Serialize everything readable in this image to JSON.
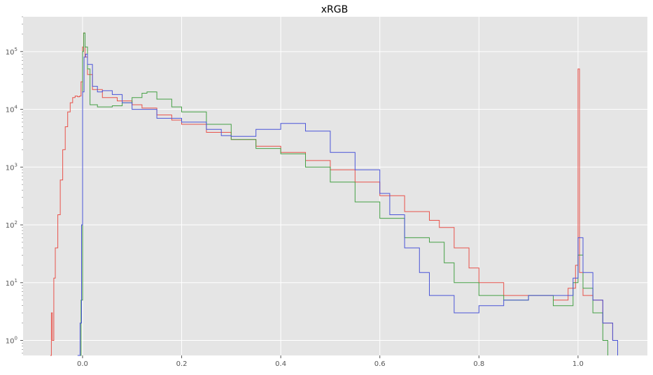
{
  "chart_data": {
    "type": "line",
    "title": "xRGB",
    "xlabel": "",
    "ylabel": "",
    "xlim": [
      -0.12,
      1.14
    ],
    "ylim": [
      0.55,
      400000
    ],
    "yscale": "log",
    "grid": true,
    "background": "#e5e5e5",
    "x_ticks": [
      {
        "value": 0.0,
        "label": "0.0"
      },
      {
        "value": 0.2,
        "label": "0.2"
      },
      {
        "value": 0.4,
        "label": "0.4"
      },
      {
        "value": 0.6,
        "label": "0.6"
      },
      {
        "value": 0.8,
        "label": "0.8"
      },
      {
        "value": 1.0,
        "label": "1.0"
      }
    ],
    "y_ticks": [
      {
        "value": 1,
        "base": "10",
        "exp": "0"
      },
      {
        "value": 10,
        "base": "10",
        "exp": "1"
      },
      {
        "value": 100,
        "base": "10",
        "exp": "2"
      },
      {
        "value": 1000,
        "base": "10",
        "exp": "3"
      },
      {
        "value": 10000,
        "base": "10",
        "exp": "4"
      },
      {
        "value": 100000,
        "base": "10",
        "exp": "5"
      }
    ],
    "series": [
      {
        "color": "#e8524a",
        "points": [
          [
            -0.065,
            0.5
          ],
          [
            -0.063,
            3
          ],
          [
            -0.061,
            1
          ],
          [
            -0.058,
            12
          ],
          [
            -0.055,
            40
          ],
          [
            -0.05,
            150
          ],
          [
            -0.045,
            600
          ],
          [
            -0.04,
            2000
          ],
          [
            -0.035,
            5000
          ],
          [
            -0.03,
            9000
          ],
          [
            -0.025,
            13000
          ],
          [
            -0.02,
            16000
          ],
          [
            -0.015,
            17000
          ],
          [
            -0.01,
            16500
          ],
          [
            -0.006,
            17000
          ],
          [
            -0.003,
            30000
          ],
          [
            0.0,
            120000
          ],
          [
            0.002,
            210000
          ],
          [
            0.005,
            80000
          ],
          [
            0.01,
            40000
          ],
          [
            0.02,
            22000
          ],
          [
            0.04,
            16000
          ],
          [
            0.07,
            14000
          ],
          [
            0.1,
            12000
          ],
          [
            0.12,
            10500
          ],
          [
            0.15,
            8000
          ],
          [
            0.18,
            6500
          ],
          [
            0.2,
            5500
          ],
          [
            0.25,
            4000
          ],
          [
            0.3,
            3000
          ],
          [
            0.35,
            2300
          ],
          [
            0.4,
            1800
          ],
          [
            0.45,
            1300
          ],
          [
            0.5,
            900
          ],
          [
            0.55,
            550
          ],
          [
            0.6,
            320
          ],
          [
            0.65,
            170
          ],
          [
            0.7,
            120
          ],
          [
            0.72,
            90
          ],
          [
            0.75,
            40
          ],
          [
            0.78,
            18
          ],
          [
            0.8,
            10
          ],
          [
            0.85,
            6
          ],
          [
            0.9,
            6
          ],
          [
            0.95,
            5
          ],
          [
            0.98,
            8
          ],
          [
            0.995,
            20
          ],
          [
            1.0,
            50000
          ],
          [
            1.003,
            15
          ],
          [
            1.01,
            6
          ],
          [
            1.03,
            5
          ],
          [
            1.05,
            2
          ],
          [
            1.07,
            1
          ],
          [
            1.08,
            0.5
          ]
        ]
      },
      {
        "color": "#45a045",
        "points": [
          [
            -0.01,
            0.5
          ],
          [
            -0.003,
            5
          ],
          [
            0.0,
            100000
          ],
          [
            0.002,
            210000
          ],
          [
            0.005,
            120000
          ],
          [
            0.01,
            50000
          ],
          [
            0.015,
            12000
          ],
          [
            0.03,
            11000
          ],
          [
            0.06,
            11500
          ],
          [
            0.08,
            13000
          ],
          [
            0.1,
            16000
          ],
          [
            0.12,
            19000
          ],
          [
            0.13,
            20000
          ],
          [
            0.15,
            15000
          ],
          [
            0.18,
            11000
          ],
          [
            0.2,
            9000
          ],
          [
            0.25,
            5500
          ],
          [
            0.3,
            3000
          ],
          [
            0.35,
            2100
          ],
          [
            0.4,
            1700
          ],
          [
            0.45,
            1000
          ],
          [
            0.5,
            550
          ],
          [
            0.55,
            250
          ],
          [
            0.6,
            130
          ],
          [
            0.65,
            60
          ],
          [
            0.7,
            50
          ],
          [
            0.73,
            22
          ],
          [
            0.75,
            10
          ],
          [
            0.8,
            6
          ],
          [
            0.85,
            5
          ],
          [
            0.9,
            6
          ],
          [
            0.95,
            4
          ],
          [
            0.99,
            10
          ],
          [
            1.0,
            30
          ],
          [
            1.01,
            8
          ],
          [
            1.03,
            3
          ],
          [
            1.05,
            1
          ],
          [
            1.06,
            0.5
          ]
        ]
      },
      {
        "color": "#4a55d8",
        "points": [
          [
            -0.01,
            0.5
          ],
          [
            -0.005,
            2
          ],
          [
            -0.002,
            100
          ],
          [
            0.0,
            20000
          ],
          [
            0.003,
            80000
          ],
          [
            0.006,
            90000
          ],
          [
            0.01,
            60000
          ],
          [
            0.02,
            25000
          ],
          [
            0.03,
            20000
          ],
          [
            0.04,
            21000
          ],
          [
            0.06,
            18000
          ],
          [
            0.08,
            13000
          ],
          [
            0.1,
            10000
          ],
          [
            0.15,
            7000
          ],
          [
            0.2,
            6000
          ],
          [
            0.25,
            4500
          ],
          [
            0.28,
            3500
          ],
          [
            0.3,
            3400
          ],
          [
            0.35,
            4500
          ],
          [
            0.4,
            5700
          ],
          [
            0.45,
            4200
          ],
          [
            0.5,
            1800
          ],
          [
            0.55,
            900
          ],
          [
            0.6,
            350
          ],
          [
            0.62,
            150
          ],
          [
            0.65,
            40
          ],
          [
            0.68,
            15
          ],
          [
            0.7,
            6
          ],
          [
            0.75,
            3
          ],
          [
            0.8,
            4
          ],
          [
            0.85,
            5
          ],
          [
            0.9,
            6
          ],
          [
            0.95,
            6
          ],
          [
            0.99,
            12
          ],
          [
            1.0,
            60
          ],
          [
            1.01,
            15
          ],
          [
            1.03,
            5
          ],
          [
            1.05,
            2
          ],
          [
            1.07,
            1
          ],
          [
            1.08,
            0.5
          ]
        ]
      }
    ]
  }
}
